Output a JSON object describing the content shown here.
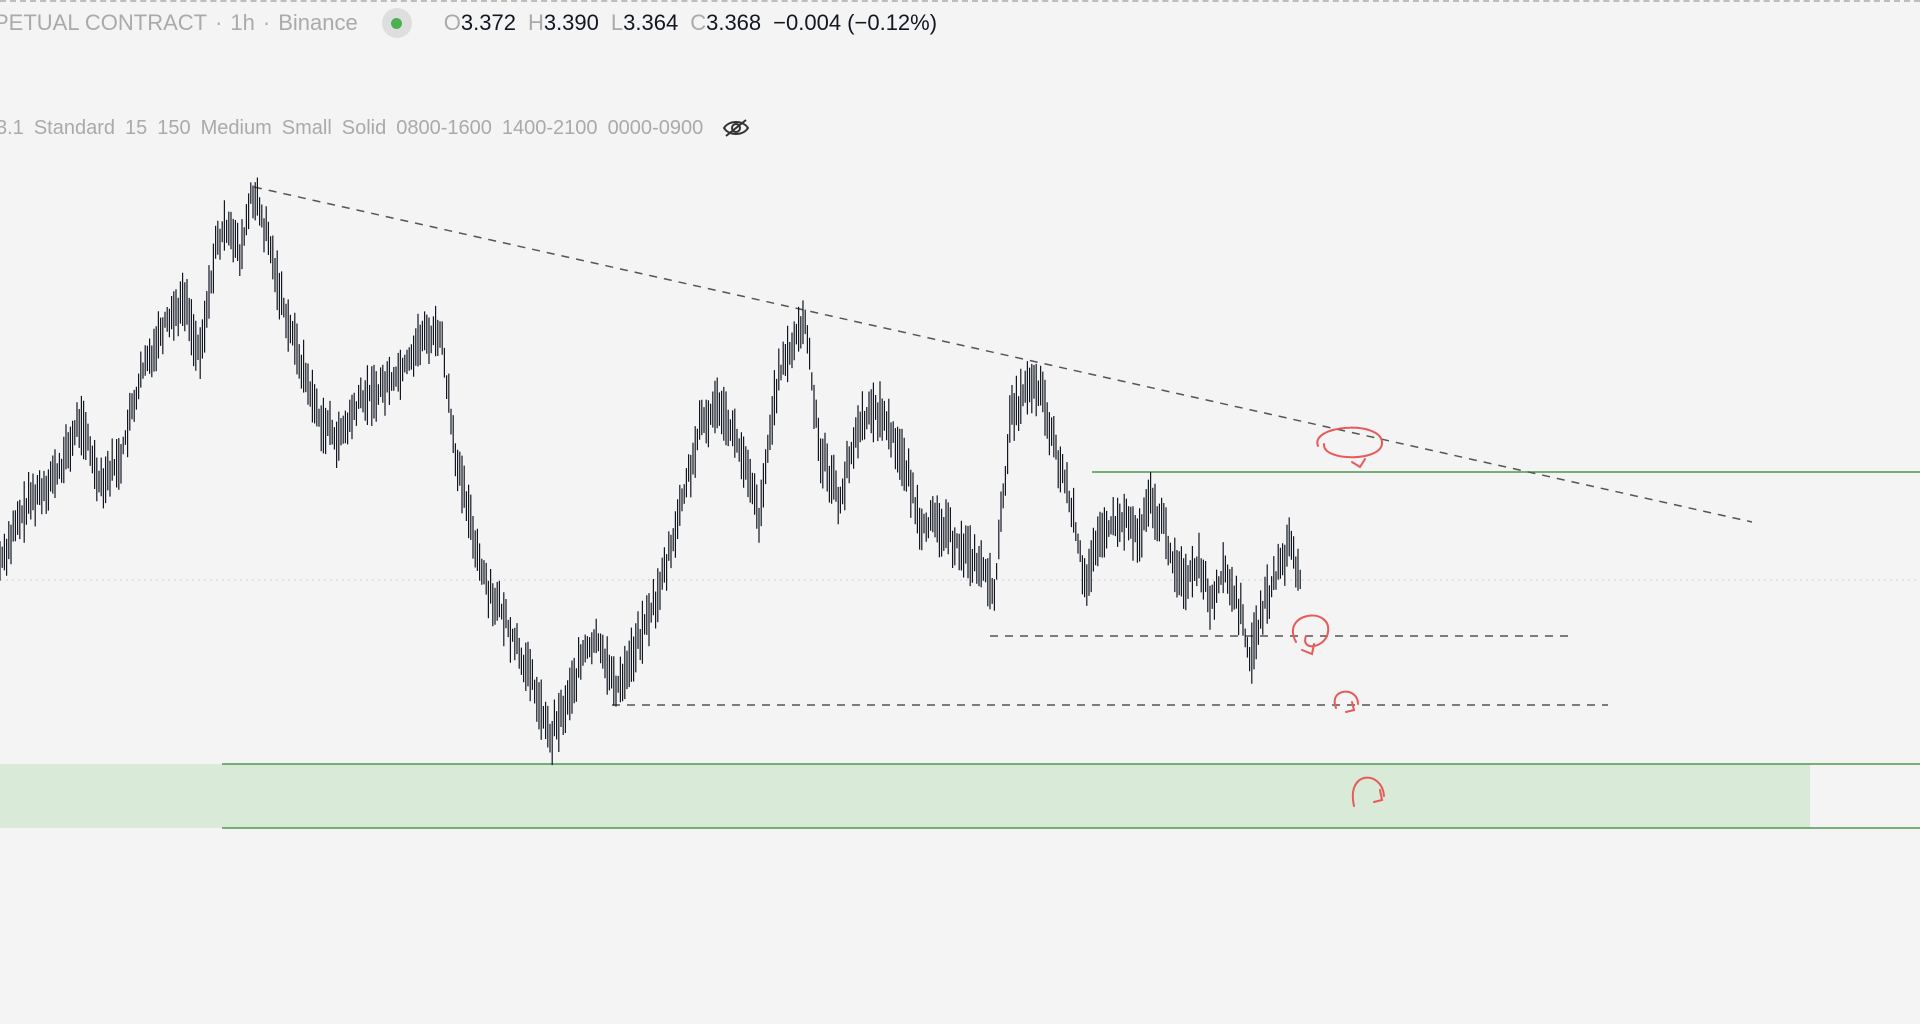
{
  "header": {
    "title": "PETUAL CONTRACT",
    "timeframe": "1h",
    "exchange": "Binance",
    "open_label": "O",
    "open": "3.372",
    "high_label": "H",
    "high": "3.390",
    "low_label": "L",
    "low": "3.364",
    "close_label": "C",
    "close": "3.368",
    "change": "−0.004 (−0.12%)",
    "status_color": "#4caf50"
  },
  "indicator": {
    "items": [
      "3.1",
      "Standard",
      "15",
      "150",
      "Medium",
      "Small",
      "Solid",
      "0800-1600",
      "1400-2100",
      "0000-0900"
    ],
    "visibility_icon": "eye-hidden-icon"
  },
  "colors": {
    "background": "#f4f4f4",
    "candles": "#131722",
    "support_zone": "#d9ebd8",
    "zone_border": "#4c9a4c",
    "annotation": "#e85a5a",
    "dashed_lines": "#555555"
  }
}
